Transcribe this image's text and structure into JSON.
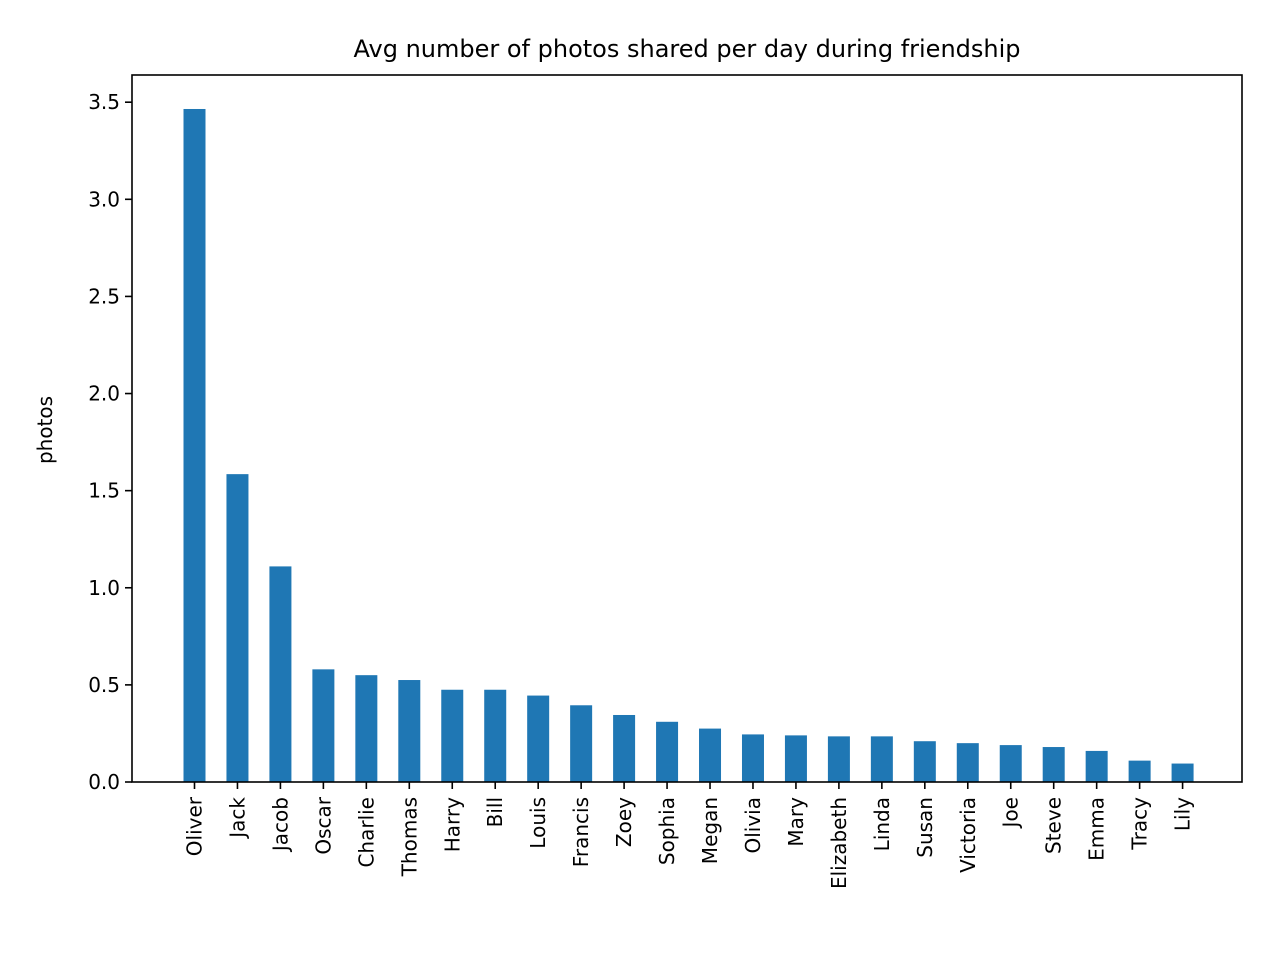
{
  "chart_data": {
    "type": "bar",
    "title": "Avg number of photos shared per day during friendship",
    "xlabel": "",
    "ylabel": "photos",
    "categories": [
      "Oliver",
      "Jack",
      "Jacob",
      "Oscar",
      "Charlie",
      "Thomas",
      "Harry",
      "Bill",
      "Louis",
      "Francis",
      "Zoey",
      "Sophia",
      "Megan",
      "Olivia",
      "Mary",
      "Elizabeth",
      "Linda",
      "Susan",
      "Victoria",
      "Joe",
      "Steve",
      "Emma",
      "Tracy",
      "Lily"
    ],
    "values": [
      3.465,
      1.585,
      1.11,
      0.58,
      0.55,
      0.525,
      0.475,
      0.475,
      0.445,
      0.395,
      0.345,
      0.31,
      0.275,
      0.245,
      0.24,
      0.235,
      0.235,
      0.21,
      0.2,
      0.19,
      0.18,
      0.16,
      0.11,
      0.095
    ],
    "ylim": [
      0,
      3.64
    ],
    "yticks": [
      "0.0",
      "0.5",
      "1.0",
      "1.5",
      "2.0",
      "2.5",
      "3.0",
      "3.5"
    ],
    "bar_color": "#1f77b4",
    "grid": false,
    "legend": false
  }
}
